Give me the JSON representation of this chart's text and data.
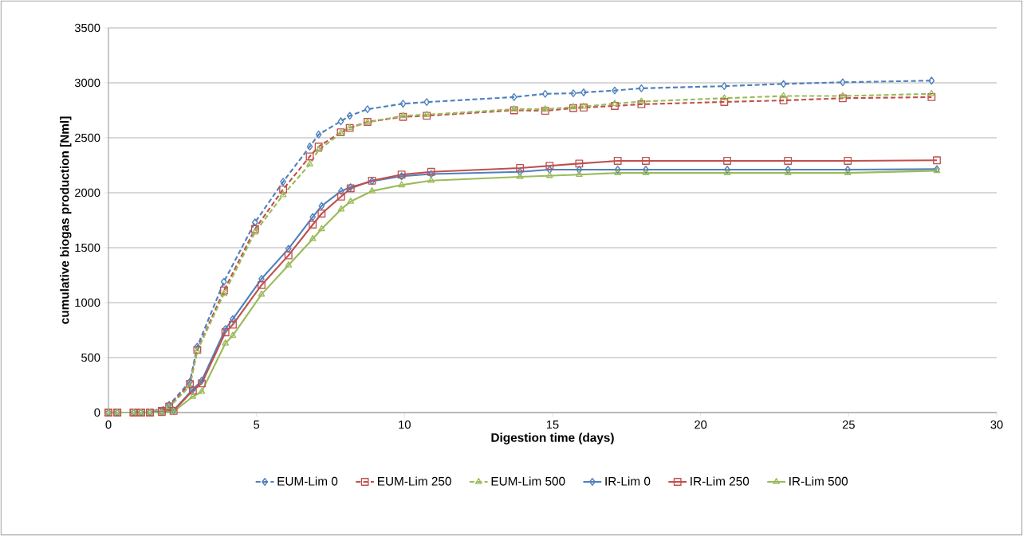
{
  "chart_data": {
    "type": "line",
    "xlabel": "Digestion time (days)",
    "ylabel": "cumulative biogas production  [Nml]",
    "xlim": [
      0,
      30
    ],
    "xticks": [
      0,
      5,
      10,
      15,
      20,
      25,
      30
    ],
    "ylim": [
      0,
      3500
    ],
    "yticks": [
      0,
      500,
      1000,
      1500,
      2000,
      2500,
      3000,
      3500
    ],
    "grid": "y",
    "legend": "bottom",
    "series": [
      {
        "name": "EUM-Lim 0",
        "color": "#4f81bd",
        "marker": "diamond",
        "line_style": "dashed",
        "x": [
          0,
          0.3,
          0.85,
          1.1,
          1.4,
          1.8,
          2.05,
          2.75,
          3.0,
          3.9,
          4.95,
          5.9,
          6.8,
          7.1,
          7.85,
          8.15,
          8.75,
          9.95,
          10.75,
          13.7,
          14.75,
          15.7,
          16.05,
          17.1,
          18.0,
          20.8,
          22.8,
          24.8,
          27.8
        ],
        "values": [
          0,
          0,
          0,
          0,
          0,
          null,
          70,
          280,
          600,
          1190,
          1730,
          2100,
          2420,
          2530,
          2650,
          2700,
          2760,
          2810,
          2825,
          2870,
          2900,
          2905,
          2913,
          2930,
          2950,
          2970,
          2990,
          3005,
          3020
        ]
      },
      {
        "name": "EUM-Lim 250",
        "color": "#c0504d",
        "marker": "square",
        "line_style": "dashed",
        "x": [
          0,
          0.3,
          0.85,
          1.1,
          1.4,
          1.8,
          2.05,
          2.75,
          3.0,
          3.9,
          4.95,
          5.9,
          6.8,
          7.1,
          7.85,
          8.15,
          8.75,
          9.95,
          10.75,
          13.7,
          14.75,
          15.7,
          16.05,
          17.1,
          18.0,
          20.8,
          22.8,
          24.8,
          27.8
        ],
        "values": [
          0,
          0,
          0,
          0,
          0,
          15,
          55,
          260,
          570,
          1110,
          1670,
          2030,
          2330,
          2420,
          2550,
          2590,
          2645,
          2690,
          2700,
          2750,
          2745,
          2770,
          2775,
          2790,
          2805,
          2826,
          2840,
          2860,
          2870
        ]
      },
      {
        "name": "EUM-Lim 500",
        "color": "#9bbb59",
        "marker": "triangle",
        "line_style": "dashed",
        "x": [
          0,
          0.3,
          0.85,
          1.1,
          1.4,
          1.8,
          2.05,
          2.75,
          3.0,
          3.9,
          4.95,
          5.9,
          6.8,
          7.1,
          7.85,
          8.15,
          8.75,
          9.95,
          10.75,
          13.7,
          14.75,
          15.7,
          16.05,
          17.1,
          18.0,
          20.8,
          22.8,
          24.8,
          27.8
        ],
        "values": [
          0,
          0,
          0,
          0,
          0,
          null,
          50,
          240,
          560,
          1080,
          1640,
          1980,
          2260,
          2390,
          2540,
          2590,
          2640,
          2700,
          2710,
          2760,
          2760,
          2780,
          2785,
          2810,
          2830,
          2860,
          2880,
          2880,
          2900
        ]
      },
      {
        "name": "IR-Lim 0",
        "color": "#4f81bd",
        "marker": "diamond",
        "line_style": "solid",
        "x": [
          0,
          0.3,
          0.85,
          1.1,
          1.4,
          1.8,
          2.2,
          2.85,
          3.15,
          3.95,
          4.2,
          5.17,
          6.08,
          6.9,
          7.2,
          7.86,
          8.18,
          8.9,
          9.9,
          10.9,
          13.9,
          14.9,
          15.9,
          17.2,
          18.15,
          20.9,
          22.95,
          24.97,
          27.98
        ],
        "values": [
          0,
          0,
          0,
          0,
          0,
          5,
          20,
          210,
          290,
          760,
          850,
          1217,
          1490,
          1780,
          1880,
          2015,
          2050,
          2105,
          2150,
          2170,
          2190,
          2210,
          2210,
          2210,
          2210,
          2210,
          2210,
          2210,
          2215
        ]
      },
      {
        "name": "IR-Lim 250",
        "color": "#c0504d",
        "marker": "square",
        "line_style": "solid",
        "x": [
          0,
          0.3,
          0.85,
          1.1,
          1.4,
          1.8,
          2.2,
          2.85,
          3.15,
          3.95,
          4.2,
          5.17,
          6.08,
          6.9,
          7.2,
          7.86,
          8.18,
          8.9,
          9.9,
          10.9,
          13.9,
          14.9,
          15.9,
          17.2,
          18.15,
          20.9,
          22.95,
          24.97,
          27.98
        ],
        "values": [
          0,
          0,
          0,
          0,
          0,
          5,
          15,
          200,
          265,
          730,
          800,
          1160,
          1430,
          1710,
          1810,
          1965,
          2040,
          2110,
          2165,
          2190,
          2225,
          2245,
          2265,
          2290,
          2290,
          2290,
          2290,
          2290,
          2295
        ]
      },
      {
        "name": "IR-Lim 500",
        "color": "#9bbb59",
        "marker": "triangle",
        "line_style": "solid",
        "x": [
          0,
          0.3,
          0.85,
          1.1,
          1.4,
          1.8,
          2.2,
          2.85,
          3.15,
          3.95,
          4.2,
          5.17,
          6.08,
          6.9,
          7.2,
          7.86,
          8.18,
          8.9,
          9.9,
          10.9,
          13.9,
          14.9,
          15.9,
          17.2,
          18.15,
          20.9,
          22.95,
          24.97,
          27.98
        ],
        "values": [
          0,
          0,
          0,
          0,
          0,
          0,
          10,
          145,
          190,
          630,
          700,
          1075,
          1340,
          1580,
          1670,
          1850,
          1920,
          2015,
          2070,
          2110,
          2145,
          2155,
          2165,
          2180,
          2180,
          2180,
          2180,
          2180,
          2200
        ]
      }
    ]
  }
}
